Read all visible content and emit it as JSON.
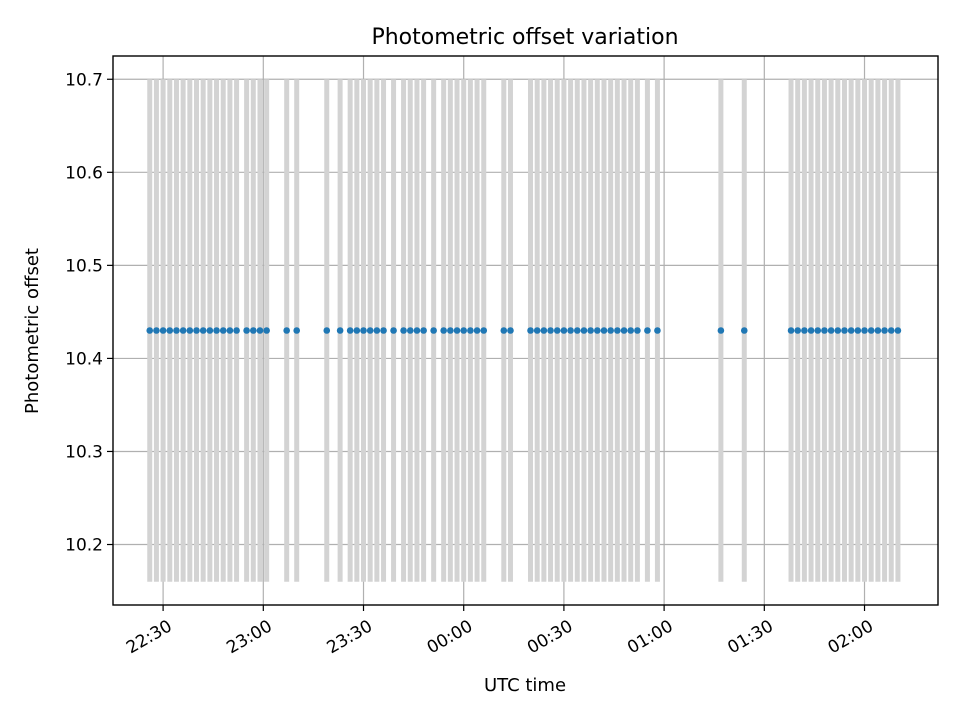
{
  "chart_data": {
    "type": "scatter",
    "title": "Photometric offset variation",
    "xlabel": "UTC time",
    "ylabel": "Photometric offset",
    "x_axis": "time",
    "x_reference_date": "",
    "x_ticks": [
      "22:30",
      "23:00",
      "23:30",
      "00:00",
      "00:30",
      "01:00",
      "01:30",
      "02:00"
    ],
    "xlim": [
      "22:15",
      "02:22"
    ],
    "y_ticks": [
      "10.2",
      "10.3",
      "10.4",
      "10.5",
      "10.6",
      "10.7"
    ],
    "ylim": [
      10.135,
      10.725
    ],
    "grid": true,
    "series": [
      {
        "marker": "dot",
        "color": "#1f77b4",
        "y_value": 10.43,
        "error_low": 10.16,
        "error_high": 10.7,
        "error_color": "#d3d3d3",
        "x": [
          "22:26",
          "22:28",
          "22:30",
          "22:32",
          "22:34",
          "22:36",
          "22:38",
          "22:40",
          "22:42",
          "22:44",
          "22:46",
          "22:48",
          "22:50",
          "22:52",
          "22:55",
          "22:57",
          "22:59",
          "23:01",
          "23:07",
          "23:10",
          "23:19",
          "23:23",
          "23:26",
          "23:28",
          "23:30",
          "23:32",
          "23:34",
          "23:36",
          "23:39",
          "23:42",
          "23:44",
          "23:46",
          "23:48",
          "23:51",
          "23:54",
          "23:56",
          "23:58",
          "24:00",
          "24:02",
          "24:04",
          "24:06",
          "24:12",
          "24:14",
          "24:20",
          "24:22",
          "24:24",
          "24:26",
          "24:28",
          "24:30",
          "24:32",
          "24:34",
          "24:36",
          "24:38",
          "24:40",
          "24:42",
          "24:44",
          "24:46",
          "24:48",
          "24:50",
          "24:52",
          "24:55",
          "24:58",
          "25:17",
          "25:24",
          "25:38",
          "25:40",
          "25:42",
          "25:44",
          "25:46",
          "25:48",
          "25:50",
          "25:52",
          "25:54",
          "25:56",
          "25:58",
          "26:00",
          "26:02",
          "26:04",
          "26:06",
          "26:08",
          "26:10"
        ]
      }
    ]
  }
}
